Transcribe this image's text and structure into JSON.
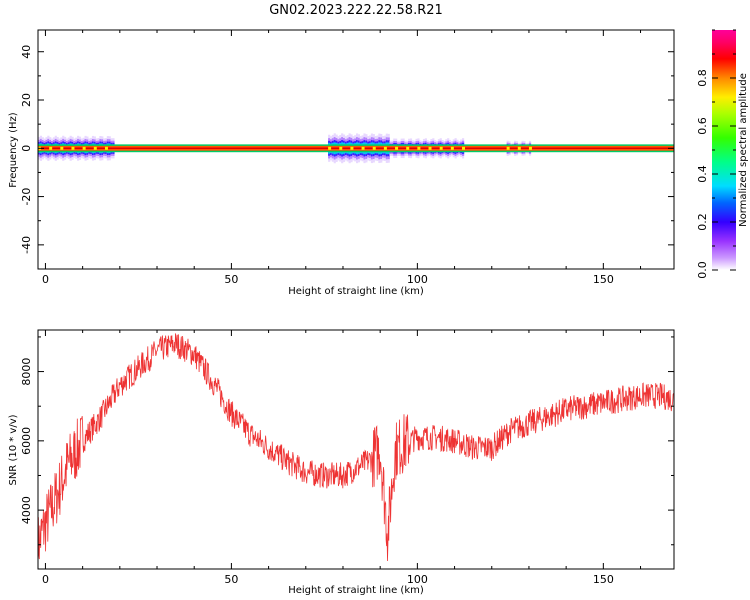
{
  "title": "GN02.2023.222.22.58.R21",
  "chart_data": [
    {
      "type": "heatmap",
      "xlabel": "Height of straight line (km)",
      "ylabel": "Frequency (Hz)",
      "xlim": [
        -2,
        169
      ],
      "ylim": [
        -50,
        49
      ],
      "xticks": [
        0,
        50,
        100,
        150
      ],
      "yticks": [
        -40,
        -20,
        0,
        20,
        40
      ],
      "colorbar": {
        "label": "Normalized spectral amplitude",
        "range": [
          0.0,
          1.0
        ],
        "ticks": [
          0.0,
          0.2,
          0.4,
          0.6,
          0.8
        ]
      },
      "band": {
        "center_hz": 0,
        "core_halfwidth_hz": 1,
        "spread_segments": [
          {
            "x_start": -2,
            "x_end": 18,
            "halfwidth_hz": 4
          },
          {
            "x_start": 76,
            "x_end": 92,
            "halfwidth_hz": 5
          },
          {
            "x_start": 92,
            "x_end": 112,
            "halfwidth_hz": 3
          },
          {
            "x_start": 124,
            "x_end": 130,
            "halfwidth_hz": 2
          }
        ]
      }
    },
    {
      "type": "line",
      "xlabel": "Height of straight line (km)",
      "ylabel": "SNR (10 * v/v)",
      "xlim": [
        -2,
        169
      ],
      "ylim": [
        2300,
        9200
      ],
      "xticks": [
        0,
        50,
        100,
        150
      ],
      "yticks": [
        4000,
        6000,
        8000
      ],
      "color": "#ee3333",
      "series": [
        {
          "x": [
            -2,
            0,
            3,
            6,
            10,
            15,
            20,
            25,
            30,
            35,
            40,
            45,
            50,
            55,
            60,
            65,
            70,
            75,
            80,
            85,
            88,
            90,
            92,
            94,
            96,
            98,
            100,
            105,
            110,
            115,
            120,
            125,
            130,
            135,
            140,
            145,
            150,
            155,
            160,
            165,
            169
          ],
          "values": [
            3000,
            3600,
            4400,
            5300,
            6000,
            6700,
            7600,
            8100,
            8600,
            8800,
            8500,
            7700,
            6800,
            6200,
            5800,
            5400,
            5100,
            5000,
            5000,
            5300,
            5500,
            5800,
            3300,
            5700,
            5900,
            6000,
            6100,
            6100,
            6000,
            5800,
            5800,
            6300,
            6500,
            6700,
            6900,
            7000,
            7100,
            7200,
            7300,
            7300,
            7200
          ]
        }
      ]
    }
  ]
}
